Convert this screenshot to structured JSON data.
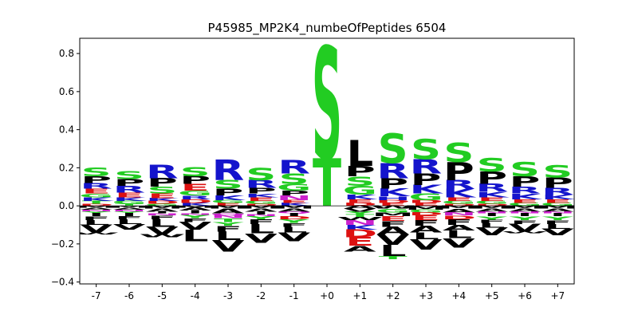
{
  "chart_data": {
    "type": "sequence-logo",
    "title": "P45985_MP2K4_numbeOfPeptides 6504",
    "xlabel": "",
    "ylabel": "",
    "ylim": [
      -0.41,
      0.88
    ],
    "yticks": [
      -0.4,
      -0.2,
      0.0,
      0.2,
      0.4,
      0.6,
      0.8
    ],
    "ytick_labels": [
      "−0.4",
      "−0.2",
      "0.0",
      "0.2",
      "0.4",
      "0.6",
      "0.8"
    ],
    "categories": [
      "-7",
      "-6",
      "-5",
      "-4",
      "-3",
      "-2",
      "-1",
      "+0",
      "+1",
      "+2",
      "+3",
      "+4",
      "+5",
      "+6",
      "+7"
    ],
    "colors": {
      "S": "#22cc22",
      "T": "#22cc22",
      "G": "#22cc22",
      "Y": "#22cc22",
      "C": "#22cc22",
      "R": "#1414cc",
      "K": "#1414cc",
      "H": "#1414cc",
      "D": "#dd1111",
      "E": "#dd1111",
      "N": "#cc22cc",
      "Q": "#cc22cc",
      "P": "#000000",
      "L": "#000000",
      "V": "#000000",
      "A": "#000000",
      "I": "#000000",
      "M": "#000000",
      "F": "#000000",
      "W": "#000000"
    },
    "stacks": [
      {
        "position": "-7",
        "pos": [
          [
            "S",
            0.045
          ],
          [
            "P",
            0.035
          ],
          [
            "R",
            0.03
          ],
          [
            "E",
            0.025
          ],
          [
            "K",
            0.02
          ],
          [
            "G",
            0.02
          ],
          [
            "T",
            0.015
          ],
          [
            "D",
            0.01
          ]
        ],
        "neg": [
          [
            "M",
            0.01
          ],
          [
            "A",
            0.01
          ],
          [
            "N",
            0.01
          ],
          [
            "Y",
            0.01
          ],
          [
            "I",
            0.015
          ],
          [
            "F",
            0.02
          ],
          [
            "L",
            0.025
          ],
          [
            "V",
            0.04
          ],
          [
            "W",
            0.01
          ]
        ]
      },
      {
        "position": "-6",
        "pos": [
          [
            "S",
            0.04
          ],
          [
            "R",
            0.035
          ],
          [
            "P",
            0.035
          ],
          [
            "E",
            0.025
          ],
          [
            "K",
            0.02
          ],
          [
            "G",
            0.015
          ],
          [
            "T",
            0.01
          ]
        ],
        "neg": [
          [
            "M",
            0.01
          ],
          [
            "A",
            0.01
          ],
          [
            "N",
            0.01
          ],
          [
            "Y",
            0.01
          ],
          [
            "I",
            0.015
          ],
          [
            "F",
            0.015
          ],
          [
            "L",
            0.025
          ],
          [
            "V",
            0.03
          ]
        ]
      },
      {
        "position": "-5",
        "pos": [
          [
            "R",
            0.07
          ],
          [
            "P",
            0.045
          ],
          [
            "S",
            0.035
          ],
          [
            "E",
            0.025
          ],
          [
            "D",
            0.015
          ],
          [
            "K",
            0.015
          ],
          [
            "G",
            0.01
          ]
        ],
        "neg": [
          [
            "M",
            0.015
          ],
          [
            "A",
            0.015
          ],
          [
            "I",
            0.01
          ],
          [
            "N",
            0.01
          ],
          [
            "F",
            0.02
          ],
          [
            "L",
            0.04
          ],
          [
            "V",
            0.04
          ],
          [
            "W",
            0.015
          ]
        ]
      },
      {
        "position": "-4",
        "pos": [
          [
            "S",
            0.05
          ],
          [
            "E",
            0.035
          ],
          [
            "P",
            0.04
          ],
          [
            "G",
            0.025
          ],
          [
            "D",
            0.02
          ],
          [
            "R",
            0.02
          ],
          [
            "K",
            0.015
          ]
        ],
        "neg": [
          [
            "M",
            0.01
          ],
          [
            "A",
            0.015
          ],
          [
            "I",
            0.015
          ],
          [
            "N",
            0.01
          ],
          [
            "Y",
            0.015
          ],
          [
            "F",
            0.02
          ],
          [
            "V",
            0.04
          ],
          [
            "L",
            0.06
          ]
        ]
      },
      {
        "position": "-3",
        "pos": [
          [
            "R",
            0.11
          ],
          [
            "S",
            0.045
          ],
          [
            "P",
            0.035
          ],
          [
            "K",
            0.025
          ],
          [
            "E",
            0.015
          ],
          [
            "G",
            0.015
          ]
        ],
        "neg": [
          [
            "M",
            0.015
          ],
          [
            "A",
            0.025
          ],
          [
            "Q",
            0.01
          ],
          [
            "N",
            0.015
          ],
          [
            "T",
            0.02
          ],
          [
            "Y",
            0.02
          ],
          [
            "F",
            0.03
          ],
          [
            "L",
            0.045
          ],
          [
            "V",
            0.06
          ]
        ]
      },
      {
        "position": "-2",
        "pos": [
          [
            "S",
            0.065
          ],
          [
            "R",
            0.04
          ],
          [
            "P",
            0.03
          ],
          [
            "E",
            0.02
          ],
          [
            "K",
            0.02
          ],
          [
            "G",
            0.015
          ],
          [
            "D",
            0.01
          ]
        ],
        "neg": [
          [
            "M",
            0.015
          ],
          [
            "A",
            0.015
          ],
          [
            "I",
            0.015
          ],
          [
            "N",
            0.01
          ],
          [
            "Y",
            0.015
          ],
          [
            "F",
            0.025
          ],
          [
            "L",
            0.05
          ],
          [
            "V",
            0.05
          ]
        ]
      },
      {
        "position": "-1",
        "pos": [
          [
            "R",
            0.07
          ],
          [
            "S",
            0.055
          ],
          [
            "G",
            0.035
          ],
          [
            "N",
            0.025
          ],
          [
            "P",
            0.025
          ],
          [
            "K",
            0.015
          ],
          [
            "E",
            0.015
          ]
        ],
        "neg": [
          [
            "M",
            0.015
          ],
          [
            "A",
            0.015
          ],
          [
            "Q",
            0.01
          ],
          [
            "I",
            0.015
          ],
          [
            "D",
            0.015
          ],
          [
            "Y",
            0.02
          ],
          [
            "F",
            0.02
          ],
          [
            "L",
            0.03
          ],
          [
            "V",
            0.045
          ]
        ]
      },
      {
        "position": "+0",
        "pos": [
          [
            "S",
            0.59
          ],
          [
            "T",
            0.25
          ]
        ],
        "neg": []
      },
      {
        "position": "+1",
        "pos": [
          [
            "L",
            0.135
          ],
          [
            "P",
            0.055
          ],
          [
            "S",
            0.05
          ],
          [
            "G",
            0.045
          ],
          [
            "K",
            0.025
          ],
          [
            "E",
            0.02
          ],
          [
            "D",
            0.015
          ]
        ],
        "neg": [
          [
            "A",
            0.015
          ],
          [
            "V",
            0.015
          ],
          [
            "Y",
            0.015
          ],
          [
            "T",
            0.015
          ],
          [
            "W",
            0.015
          ],
          [
            "N",
            0.025
          ],
          [
            "K",
            0.025
          ],
          [
            "D",
            0.04
          ],
          [
            "E",
            0.045
          ],
          [
            "A",
            0.03
          ]
        ]
      },
      {
        "position": "+2",
        "pos": [
          [
            "S",
            0.155
          ],
          [
            "R",
            0.08
          ],
          [
            "P",
            0.055
          ],
          [
            "K",
            0.04
          ],
          [
            "H",
            0.02
          ],
          [
            "E",
            0.015
          ],
          [
            "D",
            0.015
          ]
        ],
        "neg": [
          [
            "W",
            0.015
          ],
          [
            "G",
            0.02
          ],
          [
            "M",
            0.02
          ],
          [
            "E",
            0.025
          ],
          [
            "F",
            0.03
          ],
          [
            "A",
            0.04
          ],
          [
            "V",
            0.055
          ],
          [
            "L",
            0.06
          ],
          [
            "T",
            0.015
          ]
        ]
      },
      {
        "position": "+3",
        "pos": [
          [
            "S",
            0.105
          ],
          [
            "R",
            0.075
          ],
          [
            "P",
            0.06
          ],
          [
            "K",
            0.045
          ],
          [
            "G",
            0.035
          ],
          [
            "E",
            0.015
          ],
          [
            "D",
            0.015
          ]
        ],
        "neg": [
          [
            "M",
            0.02
          ],
          [
            "G",
            0.015
          ],
          [
            "D",
            0.015
          ],
          [
            "E",
            0.025
          ],
          [
            "F",
            0.03
          ],
          [
            "A",
            0.035
          ],
          [
            "L",
            0.035
          ],
          [
            "V",
            0.055
          ]
        ]
      },
      {
        "position": "+4",
        "pos": [
          [
            "S",
            0.1
          ],
          [
            "P",
            0.095
          ],
          [
            "K",
            0.045
          ],
          [
            "R",
            0.045
          ],
          [
            "E",
            0.02
          ],
          [
            "G",
            0.015
          ],
          [
            "D",
            0.01
          ]
        ],
        "neg": [
          [
            "M",
            0.015
          ],
          [
            "A",
            0.02
          ],
          [
            "N",
            0.015
          ],
          [
            "D",
            0.02
          ],
          [
            "F",
            0.03
          ],
          [
            "A",
            0.03
          ],
          [
            "L",
            0.04
          ],
          [
            "V",
            0.05
          ]
        ]
      },
      {
        "position": "+5",
        "pos": [
          [
            "S",
            0.07
          ],
          [
            "P",
            0.065
          ],
          [
            "R",
            0.04
          ],
          [
            "K",
            0.03
          ],
          [
            "E",
            0.02
          ],
          [
            "G",
            0.015
          ],
          [
            "D",
            0.01
          ]
        ],
        "neg": [
          [
            "M",
            0.015
          ],
          [
            "A",
            0.015
          ],
          [
            "N",
            0.01
          ],
          [
            "I",
            0.015
          ],
          [
            "Y",
            0.02
          ],
          [
            "F",
            0.015
          ],
          [
            "L",
            0.025
          ],
          [
            "V",
            0.04
          ]
        ]
      },
      {
        "position": "+6",
        "pos": [
          [
            "S",
            0.075
          ],
          [
            "P",
            0.055
          ],
          [
            "R",
            0.035
          ],
          [
            "K",
            0.03
          ],
          [
            "E",
            0.02
          ],
          [
            "G",
            0.015
          ]
        ],
        "neg": [
          [
            "M",
            0.015
          ],
          [
            "A",
            0.015
          ],
          [
            "N",
            0.01
          ],
          [
            "I",
            0.015
          ],
          [
            "Y",
            0.02
          ],
          [
            "F",
            0.02
          ],
          [
            "V",
            0.04
          ],
          [
            "W",
            0.01
          ]
        ]
      },
      {
        "position": "+7",
        "pos": [
          [
            "S",
            0.065
          ],
          [
            "P",
            0.055
          ],
          [
            "R",
            0.035
          ],
          [
            "K",
            0.025
          ],
          [
            "E",
            0.02
          ],
          [
            "G",
            0.015
          ]
        ],
        "neg": [
          [
            "M",
            0.015
          ],
          [
            "A",
            0.015
          ],
          [
            "N",
            0.01
          ],
          [
            "I",
            0.015
          ],
          [
            "Y",
            0.02
          ],
          [
            "F",
            0.02
          ],
          [
            "L",
            0.025
          ],
          [
            "V",
            0.035
          ]
        ]
      }
    ]
  }
}
